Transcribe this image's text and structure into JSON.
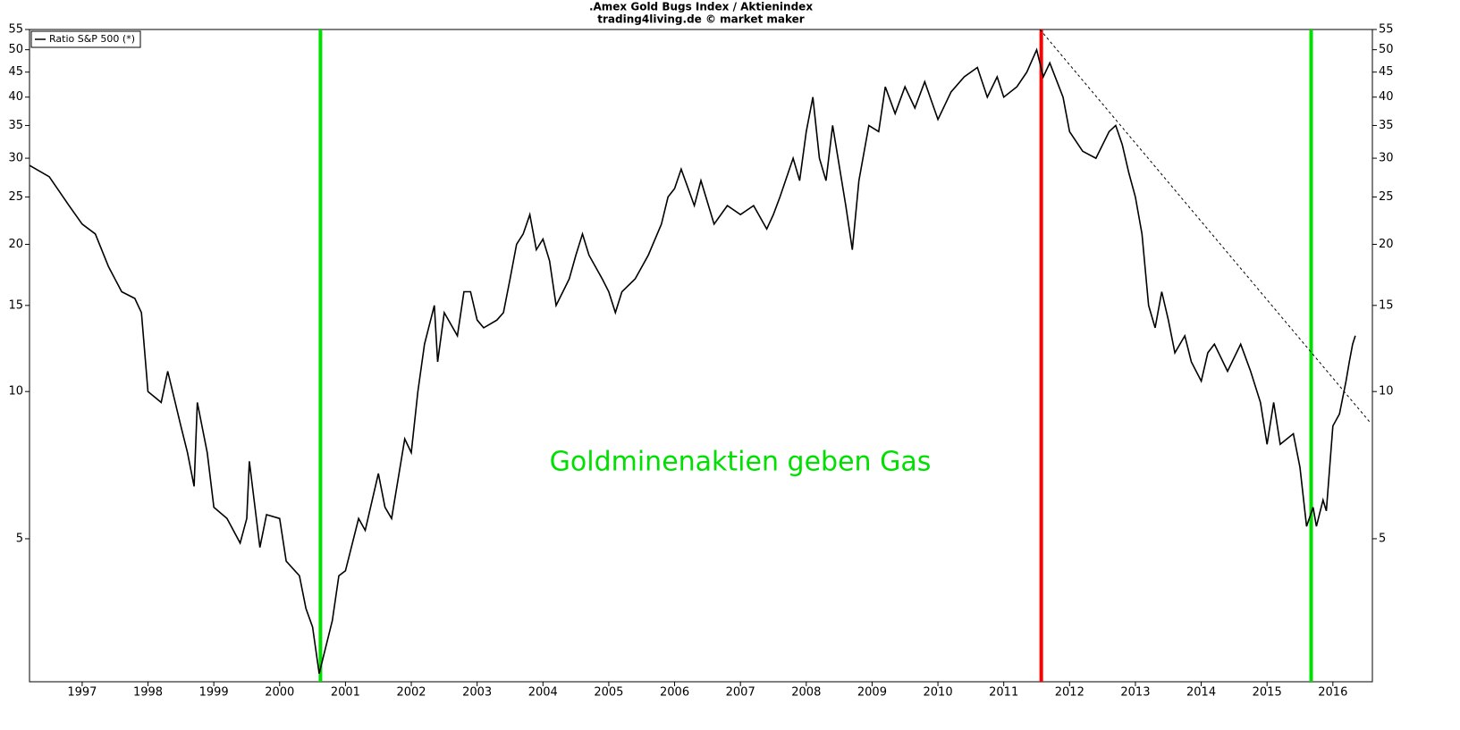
{
  "chart_data": {
    "type": "line",
    "title": ".Amex Gold Bugs Index / Aktienindex",
    "subtitle": "trading4living.de © market maker",
    "annotation": "Goldminenaktien geben Gas",
    "log_scale": true,
    "legend": "upper left",
    "x": [
      1996.2,
      1996.5,
      1996.8,
      1997.0,
      1997.2,
      1997.4,
      1997.6,
      1997.8,
      1997.9,
      1998.0,
      1998.2,
      1998.3,
      1998.5,
      1998.6,
      1998.7,
      1998.75,
      1998.9,
      1999.0,
      1999.2,
      1999.4,
      1999.5,
      1999.54,
      1999.7,
      1999.8,
      2000.0,
      2000.1,
      2000.3,
      2000.4,
      2000.5,
      2000.6,
      2000.7,
      2000.8,
      2000.9,
      2001.0,
      2001.2,
      2001.3,
      2001.5,
      2001.6,
      2001.7,
      2001.9,
      2002.0,
      2002.1,
      2002.2,
      2002.35,
      2002.4,
      2002.5,
      2002.7,
      2002.8,
      2002.9,
      2003.0,
      2003.1,
      2003.3,
      2003.4,
      2003.5,
      2003.6,
      2003.7,
      2003.8,
      2003.9,
      2004.0,
      2004.1,
      2004.2,
      2004.4,
      2004.5,
      2004.6,
      2004.7,
      2004.9,
      2005.0,
      2005.1,
      2005.2,
      2005.4,
      2005.6,
      2005.8,
      2005.9,
      2006.0,
      2006.1,
      2006.3,
      2006.4,
      2006.6,
      2006.8,
      2007.0,
      2007.2,
      2007.4,
      2007.5,
      2007.6,
      2007.8,
      2007.9,
      2008.0,
      2008.1,
      2008.2,
      2008.3,
      2008.4,
      2008.6,
      2008.7,
      2008.8,
      2008.95,
      2009.1,
      2009.2,
      2009.35,
      2009.5,
      2009.65,
      2009.8,
      2010.0,
      2010.2,
      2010.4,
      2010.6,
      2010.75,
      2010.9,
      2011.0,
      2011.2,
      2011.35,
      2011.5,
      2011.6,
      2011.7,
      2011.9,
      2012.0,
      2012.2,
      2012.4,
      2012.6,
      2012.7,
      2012.8,
      2012.9,
      2013.0,
      2013.1,
      2013.2,
      2013.3,
      2013.4,
      2013.5,
      2013.6,
      2013.75,
      2013.85,
      2014.0,
      2014.1,
      2014.2,
      2014.4,
      2014.6,
      2014.75,
      2014.9,
      2015.0,
      2015.1,
      2015.2,
      2015.4,
      2015.5,
      2015.6,
      2015.7,
      2015.75,
      2015.85,
      2015.9,
      2016.0,
      2016.1,
      2016.2,
      2016.25,
      2016.3,
      2016.34
    ],
    "series": [
      {
        "name": "Ratio S&P 500 (*)",
        "color": "#000000",
        "values": [
          29,
          27.5,
          24,
          22,
          21,
          18,
          16,
          15.5,
          14.5,
          10,
          9.5,
          11,
          8.5,
          7.5,
          6.4,
          9.5,
          7.5,
          5.8,
          5.5,
          4.9,
          5.5,
          7.2,
          4.8,
          5.6,
          5.5,
          4.5,
          4.2,
          3.6,
          3.3,
          2.65,
          3.0,
          3.4,
          4.2,
          4.3,
          5.5,
          5.2,
          6.8,
          5.8,
          5.5,
          8,
          7.5,
          10,
          12.5,
          15,
          11.5,
          14.5,
          13,
          16,
          16,
          14,
          13.5,
          14,
          14.5,
          17,
          20,
          21,
          23,
          19.5,
          20.5,
          18.5,
          15,
          17,
          19,
          21,
          19,
          17,
          16,
          14.5,
          16,
          17,
          19,
          22,
          25,
          26,
          28.5,
          24,
          27,
          22,
          24,
          23,
          24,
          21.5,
          23,
          25,
          30,
          27,
          34,
          40,
          30,
          27,
          35,
          24,
          19.5,
          27,
          35,
          34,
          42,
          37,
          42,
          38,
          43,
          36,
          41,
          44,
          46,
          40,
          44,
          40,
          42,
          45,
          50,
          44,
          47,
          40,
          34,
          31,
          30,
          34,
          35,
          32,
          28,
          25,
          21,
          15,
          13.5,
          16,
          14,
          12,
          13,
          11.5,
          10.5,
          12,
          12.5,
          11,
          12.5,
          11,
          9.5,
          7.8,
          9.5,
          7.8,
          8.2,
          7,
          5.3,
          5.8,
          5.3,
          6.0,
          5.7,
          8.5,
          9.0,
          10.5,
          11.5,
          12.5,
          13
        ]
      }
    ],
    "vlines": [
      {
        "x": 2000.62,
        "color": "#00e000"
      },
      {
        "x": 2011.57,
        "color": "#ff0000"
      },
      {
        "x": 2015.67,
        "color": "#00e000"
      }
    ],
    "trendline": {
      "x": [
        2011.55,
        2016.58
      ],
      "values": [
        55,
        8.6
      ],
      "color": "#000000"
    },
    "xlim": [
      1996.2,
      2016.6
    ],
    "xticks": [
      1997,
      1998,
      1999,
      2000,
      2001,
      2002,
      2003,
      2004,
      2005,
      2006,
      2007,
      2008,
      2009,
      2010,
      2011,
      2012,
      2013,
      2014,
      2015,
      2016
    ],
    "ylim": [
      2.55,
      55
    ],
    "yticks": [
      5,
      10,
      15,
      20,
      25,
      30,
      35,
      40,
      45,
      50,
      55
    ]
  }
}
